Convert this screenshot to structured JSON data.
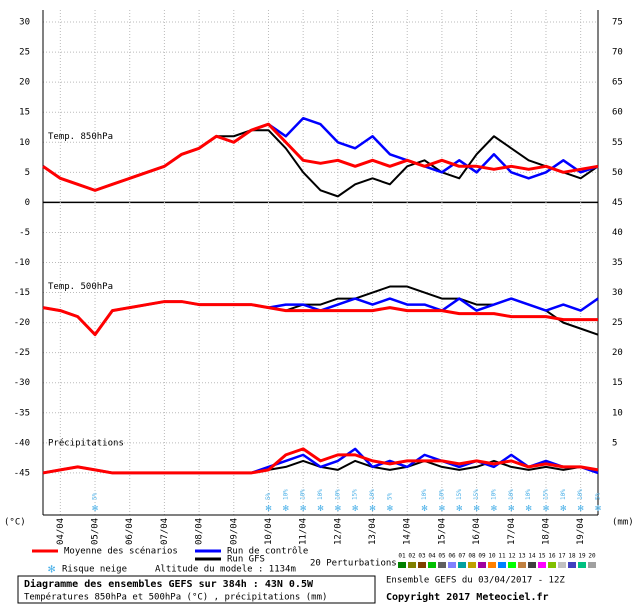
{
  "chart_data": {
    "type": "line",
    "title": "Diagramme des ensembles GEFS sur 384h : 43N 0.5W",
    "subtitle": "Températures 850hPa et 500hPa (°C) , précipitations (mm)",
    "ensemble": "Ensemble GEFS du 03/04/2017 - 12Z",
    "copyright": "Copyright 2017 Meteociel.fr",
    "altitude": "Altitude du modele : 1134m",
    "y_unit": "(°C)",
    "y2_unit": "(mm)",
    "panel_labels": [
      "Temp. 850hPa",
      "Temp. 500hPa",
      "Précipitations"
    ],
    "grid": true,
    "x": [
      0,
      12,
      24,
      36,
      48,
      60,
      72,
      84,
      96,
      108,
      120,
      132,
      144,
      156,
      168,
      180,
      192,
      204,
      216,
      228,
      240,
      252,
      264,
      276,
      288,
      300,
      312,
      324,
      336,
      348,
      360,
      372,
      384
    ],
    "xlim": [
      0,
      384
    ],
    "xticks": [
      {
        "value": 12,
        "label": "04/04"
      },
      {
        "value": 36,
        "label": "05/04"
      },
      {
        "value": 60,
        "label": "06/04"
      },
      {
        "value": 84,
        "label": "07/04"
      },
      {
        "value": 108,
        "label": "08/04"
      },
      {
        "value": 132,
        "label": "09/04"
      },
      {
        "value": 156,
        "label": "10/04"
      },
      {
        "value": 180,
        "label": "11/04"
      },
      {
        "value": 204,
        "label": "12/04"
      },
      {
        "value": 228,
        "label": "13/04"
      },
      {
        "value": 252,
        "label": "14/04"
      },
      {
        "value": 276,
        "label": "15/04"
      },
      {
        "value": 300,
        "label": "16/04"
      },
      {
        "value": 324,
        "label": "17/04"
      },
      {
        "value": 348,
        "label": "18/04"
      },
      {
        "value": 372,
        "label": "19/04"
      }
    ],
    "ylim": [
      -52,
      32
    ],
    "yticks": [
      -45,
      -40,
      -35,
      -30,
      -25,
      -20,
      -15,
      -10,
      -5,
      0,
      5,
      10,
      15,
      20,
      25,
      30
    ],
    "y2lim": [
      -7,
      77
    ],
    "y2ticks": [
      5,
      10,
      15,
      20,
      25,
      30,
      35,
      40,
      45,
      50,
      55,
      60,
      65,
      70,
      75
    ],
    "series": [
      {
        "name": "Moyenne des scénarios",
        "color": "#ff0000",
        "values": [
          6,
          4,
          3,
          2,
          3,
          4,
          5,
          6,
          8,
          9,
          11,
          10,
          12,
          13,
          10,
          7,
          6.5,
          7,
          6,
          7,
          6,
          7,
          6,
          7,
          6,
          6,
          5.5,
          6,
          5.5,
          6,
          5,
          5.5,
          6
        ]
      },
      {
        "name": "Run de contrôle",
        "color": "#0000ff",
        "values": [
          6,
          4,
          3,
          2,
          3,
          4,
          5,
          6,
          8,
          9,
          11,
          10,
          12,
          13,
          11,
          14,
          13,
          10,
          9,
          11,
          8,
          7,
          6,
          5,
          7,
          5,
          8,
          5,
          4,
          5,
          7,
          5,
          6
        ]
      },
      {
        "name": "Run GFS",
        "color": "#000000",
        "values": [
          6,
          4,
          3,
          2,
          3,
          4,
          5,
          6,
          8,
          9,
          11,
          11,
          12,
          12,
          9,
          5,
          2,
          1,
          3,
          4,
          3,
          6,
          7,
          5,
          4,
          8,
          11,
          9,
          7,
          6,
          5,
          4,
          6
        ]
      },
      {
        "color": "#ff0000",
        "values": [
          -17.5,
          -18,
          -19,
          -22,
          -18,
          -17.5,
          -17,
          -16.5,
          -16.5,
          -17,
          -17,
          -17,
          -17,
          -17.5,
          -18,
          -18,
          -18,
          -18,
          -18,
          -18,
          -17.5,
          -18,
          -18,
          -18,
          -18.5,
          -18.5,
          -18.5,
          -19,
          -19,
          -19,
          -19.5,
          -19.5,
          -19.5
        ]
      },
      {
        "color": "#0000ff",
        "values": [
          -17.5,
          -18,
          -19,
          -22,
          -18,
          -17.5,
          -17,
          -16.5,
          -16.5,
          -17,
          -17,
          -17,
          -17,
          -17.5,
          -17,
          -17,
          -18,
          -17,
          -16,
          -17,
          -16,
          -17,
          -17,
          -18,
          -16,
          -18,
          -17,
          -16,
          -17,
          -18,
          -17,
          -18,
          -16
        ]
      },
      {
        "color": "#000000",
        "values": [
          -17.5,
          -18,
          -19,
          -22,
          -18,
          -17.5,
          -17,
          -16.5,
          -16.5,
          -17,
          -17,
          -17,
          -17,
          -17.5,
          -18,
          -17,
          -17,
          -16,
          -16,
          -15,
          -14,
          -14,
          -15,
          -16,
          -16,
          -17,
          -17,
          -16,
          -17,
          -18,
          -20,
          -21,
          -22
        ]
      },
      {
        "color": "#ff0000",
        "axis": "y2",
        "values": [
          0,
          0.5,
          1,
          0.5,
          0,
          0,
          0,
          0,
          0,
          0,
          0,
          0,
          0,
          0.5,
          3,
          4,
          2,
          3,
          3,
          2,
          1.5,
          2,
          2,
          2,
          1.5,
          2,
          1.5,
          2,
          1,
          1.5,
          1,
          1,
          0.5
        ]
      },
      {
        "color": "#0000ff",
        "axis": "y2",
        "values": [
          0,
          0.5,
          1,
          0.5,
          0,
          0,
          0,
          0,
          0,
          0,
          0,
          0,
          0,
          1,
          2,
          3,
          1,
          2,
          4,
          1,
          2,
          1,
          3,
          2,
          1,
          2,
          1,
          3,
          1,
          2,
          1,
          1,
          0
        ]
      },
      {
        "color": "#000000",
        "axis": "y2",
        "values": [
          0,
          0.5,
          1,
          0.5,
          0,
          0,
          0,
          0,
          0,
          0,
          0,
          0,
          0,
          0.5,
          1,
          2,
          1,
          0.5,
          2,
          1,
          0.5,
          1,
          2,
          1,
          0.5,
          1,
          2,
          1,
          0.5,
          1,
          0.5,
          1,
          0
        ]
      }
    ],
    "snow_label": "Risque neige",
    "snow_risk": {
      "x": [
        36,
        156,
        168,
        180,
        192,
        204,
        216,
        228,
        240,
        264,
        276,
        288,
        300,
        312,
        324,
        336,
        348,
        360,
        372,
        384
      ],
      "values": [
        5,
        5,
        10,
        10,
        10,
        10,
        15,
        10,
        5,
        10,
        10,
        15,
        15,
        10,
        10,
        10,
        15,
        10,
        10,
        5
      ],
      "value_labels": [
        "5%",
        "5%",
        "10%",
        "10%",
        "10%",
        "10%",
        "15%",
        "10%",
        "5%",
        "10%",
        "10%",
        "15%",
        "15%",
        "10%",
        "10%",
        "10%",
        "15%",
        "10%",
        "10%",
        "5%"
      ]
    },
    "perturbations": {
      "label": "20 Perturbations",
      "numbers": [
        "01",
        "02",
        "03",
        "04",
        "05",
        "06",
        "07",
        "08",
        "09",
        "10",
        "11",
        "12",
        "13",
        "14",
        "15",
        "16",
        "17",
        "18",
        "19",
        "20"
      ],
      "colors": [
        "#008000",
        "#808000",
        "#804000",
        "#00c000",
        "#606060",
        "#8080ff",
        "#00a0a0",
        "#c0a000",
        "#a000a0",
        "#ff8000",
        "#0080ff",
        "#00ff00",
        "#c08040",
        "#404040",
        "#ff00ff",
        "#80c000",
        "#c0c0c0",
        "#4040c0",
        "#00c080",
        "#a0a0a0"
      ]
    }
  }
}
